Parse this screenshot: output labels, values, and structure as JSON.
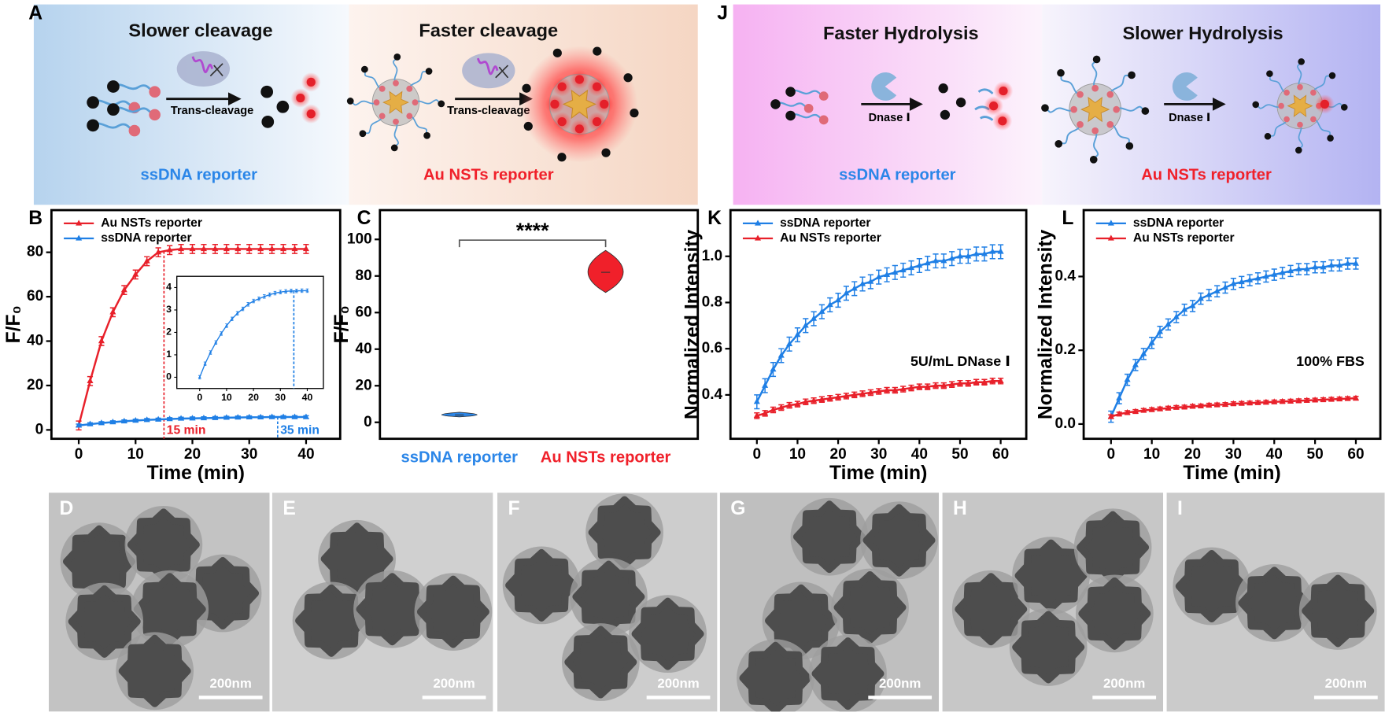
{
  "schematic_A": {
    "panel": "A",
    "left": {
      "title": "Slower cleavage",
      "arrow_label": "Trans-cleavage",
      "caption": "ssDNA reporter"
    },
    "right": {
      "title": "Faster cleavage",
      "arrow_label": "Trans-cleavage",
      "caption": "Au NSTs reporter"
    }
  },
  "schematic_J": {
    "panel": "J",
    "left": {
      "title": "Faster Hydrolysis",
      "arrow_label": "Dnase Ⅰ",
      "caption": "ssDNA reporter"
    },
    "right": {
      "title": "Slower Hydrolysis",
      "arrow_label": "Dnase Ⅰ",
      "caption": "Au NSTs reporter"
    }
  },
  "chart_data": [
    {
      "type": "line",
      "panel": "B",
      "xlabel": "Time (min)",
      "ylabel": "F/F₀",
      "x": [
        0,
        2,
        4,
        6,
        8,
        10,
        12,
        14,
        16,
        18,
        20,
        22,
        24,
        26,
        28,
        30,
        32,
        34,
        36,
        38,
        40
      ],
      "xlim": [
        -4.8,
        46
      ],
      "ylim": [
        -4,
        99
      ],
      "xticks": [
        0,
        10,
        20,
        30,
        40
      ],
      "yticks": [
        0,
        20,
        40,
        60,
        80
      ],
      "legend": "upper left",
      "series": [
        {
          "name": "Au NSTs reporter",
          "color": "#e8202a",
          "error": 2,
          "values": [
            2,
            22,
            40,
            53,
            63,
            70,
            76,
            80,
            81,
            81.5,
            81.5,
            81.5,
            81.5,
            81.5,
            81.5,
            81.5,
            81.5,
            81.5,
            81.5,
            81.5,
            81.5
          ]
        },
        {
          "name": "ssDNA reporter",
          "color": "#1f7fe5",
          "error": 0.6,
          "values": [
            2,
            2.6,
            3.1,
            3.5,
            3.9,
            4.2,
            4.5,
            4.7,
            4.9,
            5.1,
            5.2,
            5.3,
            5.4,
            5.5,
            5.6,
            5.7,
            5.7,
            5.8,
            5.8,
            5.8,
            5.8
          ]
        }
      ],
      "annotations": [
        {
          "text": "15 min",
          "x": 15,
          "color": "#e8202a"
        },
        {
          "text": "35 min",
          "x": 35,
          "color": "#1f7fe5"
        }
      ],
      "inset": {
        "x": [
          0,
          2,
          4,
          6,
          8,
          10,
          12,
          14,
          16,
          18,
          20,
          22,
          24,
          26,
          28,
          30,
          32,
          34,
          36,
          38,
          40
        ],
        "xlim": [
          -8.5,
          46
        ],
        "ylim": [
          -0.5,
          4.5
        ],
        "xticks": [
          0,
          10,
          20,
          30,
          40
        ],
        "yticks": [
          0,
          1,
          2,
          3,
          4
        ],
        "series": [
          {
            "color": "#1f7fe5",
            "error": 0.08,
            "values": [
              0,
              0.6,
              1.1,
              1.55,
              1.95,
              2.3,
              2.6,
              2.85,
              3.05,
              3.25,
              3.4,
              3.5,
              3.6,
              3.68,
              3.75,
              3.8,
              3.83,
              3.85,
              3.85,
              3.86,
              3.86
            ]
          }
        ],
        "annotations": [
          {
            "x": 35,
            "color": "#1f7fe5"
          }
        ]
      }
    },
    {
      "type": "violin",
      "panel": "C",
      "ylabel": "F/F₀",
      "significance": "****",
      "categories": [
        "ssDNA reporter",
        "Au NSTs reporter"
      ],
      "colors": [
        "#2b86e8",
        "#f0202a"
      ],
      "values": [
        4,
        82
      ],
      "min": [
        3,
        71
      ],
      "max": [
        5.5,
        94
      ],
      "ylim": [
        -9,
        116
      ],
      "yticks": [
        0,
        20,
        40,
        60,
        80,
        100
      ]
    },
    {
      "type": "line",
      "panel": "K",
      "xlabel": "Time (min)",
      "ylabel": "Normalized Intensity",
      "note": "5U/mL DNase Ⅰ",
      "x": [
        0,
        2,
        4,
        6,
        8,
        10,
        12,
        14,
        16,
        18,
        20,
        22,
        24,
        26,
        28,
        30,
        32,
        34,
        36,
        38,
        40,
        42,
        44,
        46,
        48,
        50,
        52,
        54,
        56,
        58,
        60
      ],
      "xlim": [
        -6.5,
        66.3
      ],
      "ylim": [
        0.21,
        1.2
      ],
      "xticks": [
        0,
        10,
        20,
        30,
        40,
        50,
        60
      ],
      "yticks": [
        0.4,
        0.6,
        0.8,
        {
          "value": 1,
          "label": "1.0"
        }
      ],
      "legend": "upper left",
      "series": [
        {
          "name": "ssDNA reporter",
          "color": "#1f7fe5",
          "error": 0.03,
          "values": [
            0.37,
            0.44,
            0.51,
            0.57,
            0.62,
            0.66,
            0.7,
            0.73,
            0.76,
            0.79,
            0.81,
            0.84,
            0.86,
            0.88,
            0.89,
            0.91,
            0.92,
            0.93,
            0.94,
            0.95,
            0.96,
            0.97,
            0.98,
            0.98,
            0.99,
            1.0,
            1.0,
            1.01,
            1.01,
            1.02,
            1.02
          ]
        },
        {
          "name": "Au NSTs reporter",
          "color": "#e8202a",
          "error": 0.012,
          "values": [
            0.31,
            0.32,
            0.335,
            0.345,
            0.355,
            0.36,
            0.37,
            0.375,
            0.38,
            0.385,
            0.39,
            0.395,
            0.4,
            0.405,
            0.41,
            0.415,
            0.42,
            0.42,
            0.425,
            0.43,
            0.435,
            0.435,
            0.44,
            0.44,
            0.445,
            0.45,
            0.45,
            0.455,
            0.455,
            0.46,
            0.46
          ]
        }
      ]
    },
    {
      "type": "line",
      "panel": "L",
      "xlabel": "Time (min)",
      "ylabel": "Normalized Intensity",
      "note": "100% FBS",
      "x": [
        0,
        2,
        4,
        6,
        8,
        10,
        12,
        14,
        16,
        18,
        20,
        22,
        24,
        26,
        28,
        30,
        32,
        34,
        36,
        38,
        40,
        42,
        44,
        46,
        48,
        50,
        52,
        54,
        56,
        58,
        60
      ],
      "xlim": [
        -6.7,
        66
      ],
      "ylim": [
        -0.04,
        0.58
      ],
      "xticks": [
        0,
        10,
        20,
        30,
        40,
        50,
        60
      ],
      "yticks": [
        {
          "value": 0,
          "label": "0.0"
        },
        0.2,
        0.4
      ],
      "legend": "upper left",
      "series": [
        {
          "name": "ssDNA reporter",
          "color": "#1f7fe5",
          "error": 0.015,
          "values": [
            0.02,
            0.07,
            0.12,
            0.16,
            0.19,
            0.22,
            0.25,
            0.27,
            0.29,
            0.31,
            0.32,
            0.34,
            0.35,
            0.36,
            0.37,
            0.38,
            0.385,
            0.39,
            0.395,
            0.4,
            0.405,
            0.41,
            0.415,
            0.42,
            0.42,
            0.425,
            0.425,
            0.43,
            0.43,
            0.435,
            0.435
          ]
        },
        {
          "name": "Au NSTs reporter",
          "color": "#e8202a",
          "error": 0.005,
          "values": [
            0.02,
            0.027,
            0.031,
            0.034,
            0.037,
            0.039,
            0.041,
            0.043,
            0.045,
            0.046,
            0.048,
            0.049,
            0.051,
            0.052,
            0.053,
            0.055,
            0.056,
            0.057,
            0.058,
            0.059,
            0.06,
            0.061,
            0.062,
            0.063,
            0.064,
            0.065,
            0.066,
            0.067,
            0.068,
            0.069,
            0.07
          ]
        }
      ]
    }
  ],
  "tem": {
    "panels": [
      {
        "panel": "D",
        "scale_bar": "200nm"
      },
      {
        "panel": "E",
        "scale_bar": "200nm"
      },
      {
        "panel": "F",
        "scale_bar": "200nm"
      },
      {
        "panel": "G",
        "scale_bar": "200nm"
      },
      {
        "panel": "H",
        "scale_bar": "200nm"
      },
      {
        "panel": "I",
        "scale_bar": "200nm"
      }
    ]
  }
}
